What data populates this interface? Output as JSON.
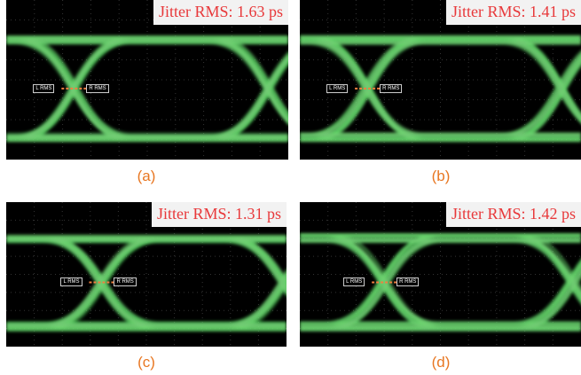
{
  "panels": [
    {
      "jitter": "Jitter RMS: 1.63 ps",
      "caption": "(a)",
      "left_marker": "L RMS",
      "right_marker": "R RMS"
    },
    {
      "jitter": "Jitter RMS: 1.41 ps",
      "caption": "(b)",
      "left_marker": "L RMS",
      "right_marker": "R RMS"
    },
    {
      "jitter": "Jitter RMS: 1.31 ps",
      "caption": "(c)",
      "left_marker": "L RMS",
      "right_marker": "R RMS"
    },
    {
      "jitter": "Jitter RMS: 1.42 ps",
      "caption": "(d)",
      "left_marker": "L RMS",
      "right_marker": "R RMS"
    }
  ]
}
